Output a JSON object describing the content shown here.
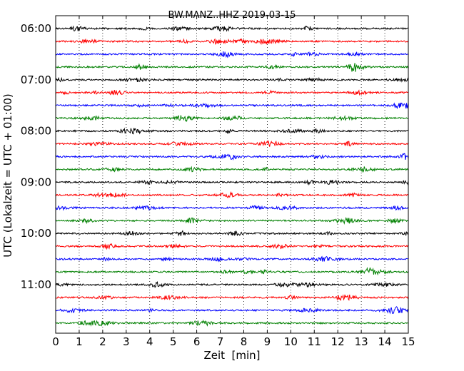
{
  "chart_data": {
    "type": "line",
    "title": "BW.MANZ..HHZ 2019-03-15",
    "xlabel": "Zeit  [min]",
    "ylabel": "UTC (Lokalzeit = UTC + 01:00)",
    "xlim": [
      0,
      15
    ],
    "xticks": [
      "0",
      "1",
      "2",
      "3",
      "4",
      "5",
      "6",
      "7",
      "8",
      "9",
      "10",
      "11",
      "12",
      "13",
      "14",
      "15"
    ],
    "ytick_labels": [
      "06:00",
      "07:00",
      "08:00",
      "09:00",
      "10:00",
      "11:00"
    ],
    "grid": "vertical dotted",
    "trace_colors": [
      "#000000",
      "#ff0000",
      "#0000ff",
      "#008000"
    ],
    "traces": [
      {
        "start": "06:00",
        "color": "#000000"
      },
      {
        "start": "06:15",
        "color": "#ff0000"
      },
      {
        "start": "06:30",
        "color": "#0000ff"
      },
      {
        "start": "06:45",
        "color": "#008000"
      },
      {
        "start": "07:00",
        "color": "#000000"
      },
      {
        "start": "07:15",
        "color": "#ff0000"
      },
      {
        "start": "07:30",
        "color": "#0000ff"
      },
      {
        "start": "07:45",
        "color": "#008000"
      },
      {
        "start": "08:00",
        "color": "#000000"
      },
      {
        "start": "08:15",
        "color": "#ff0000"
      },
      {
        "start": "08:30",
        "color": "#0000ff"
      },
      {
        "start": "08:45",
        "color": "#008000"
      },
      {
        "start": "09:00",
        "color": "#000000"
      },
      {
        "start": "09:15",
        "color": "#ff0000"
      },
      {
        "start": "09:30",
        "color": "#0000ff"
      },
      {
        "start": "09:45",
        "color": "#008000"
      },
      {
        "start": "10:00",
        "color": "#000000"
      },
      {
        "start": "10:15",
        "color": "#ff0000"
      },
      {
        "start": "10:30",
        "color": "#0000ff"
      },
      {
        "start": "10:45",
        "color": "#008000"
      },
      {
        "start": "11:00",
        "color": "#000000"
      },
      {
        "start": "11:15",
        "color": "#ff0000"
      },
      {
        "start": "11:30",
        "color": "#0000ff"
      },
      {
        "start": "11:45",
        "color": "#008000"
      }
    ]
  }
}
